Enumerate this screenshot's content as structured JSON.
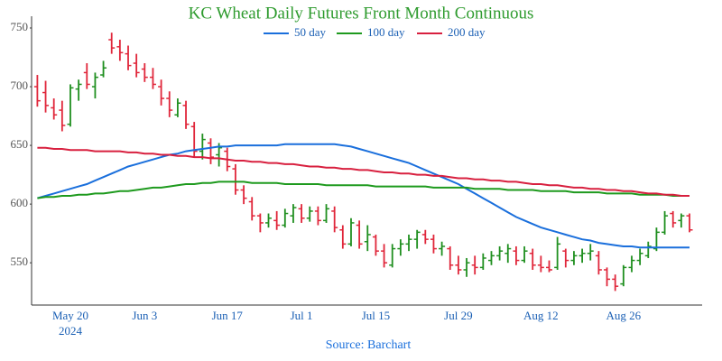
{
  "chart_data": {
    "type": "ohlc",
    "title": "KC Wheat Daily Futures Front Month Continuous",
    "source": "Source: Barchart",
    "x_sublabel": "2024",
    "categories": [
      null,
      null,
      null,
      null,
      "May 20",
      null,
      null,
      null,
      null,
      null,
      null,
      null,
      null,
      "Jun 3",
      null,
      null,
      null,
      null,
      null,
      null,
      null,
      null,
      null,
      "Jun 17",
      null,
      null,
      null,
      null,
      null,
      null,
      null,
      null,
      "Jul 1",
      null,
      null,
      null,
      null,
      null,
      null,
      null,
      null,
      "Jul 15",
      null,
      null,
      null,
      null,
      null,
      null,
      null,
      null,
      null,
      "Jul 29",
      null,
      null,
      null,
      null,
      null,
      null,
      null,
      null,
      null,
      "Aug 12",
      null,
      null,
      null,
      null,
      null,
      null,
      null,
      null,
      null,
      "Aug 26",
      null,
      null,
      null,
      null,
      null,
      null,
      null,
      null
    ],
    "open": [
      700,
      695,
      682,
      680,
      668,
      698,
      712,
      700,
      710,
      740,
      734,
      728,
      720,
      715,
      708,
      700,
      690,
      676,
      684,
      666,
      645,
      652,
      642,
      645,
      630,
      612,
      602,
      590,
      584,
      586,
      582,
      590,
      596,
      588,
      594,
      586,
      594,
      578,
      566,
      582,
      568,
      572,
      560,
      548,
      562,
      566,
      570,
      574,
      570,
      562,
      562,
      548,
      544,
      548,
      546,
      552,
      556,
      558,
      560,
      552,
      558,
      548,
      546,
      546,
      560,
      552,
      556,
      558,
      556,
      544,
      536,
      532,
      546,
      552,
      556,
      562,
      576,
      592,
      586,
      590
    ],
    "high": [
      710,
      705,
      690,
      688,
      702,
      706,
      720,
      712,
      722,
      746,
      740,
      735,
      728,
      720,
      716,
      706,
      696,
      690,
      688,
      670,
      660,
      656,
      652,
      648,
      634,
      616,
      606,
      592,
      592,
      594,
      596,
      600,
      600,
      598,
      598,
      600,
      598,
      582,
      588,
      586,
      582,
      574,
      566,
      566,
      570,
      574,
      578,
      578,
      574,
      568,
      564,
      556,
      554,
      556,
      558,
      560,
      564,
      566,
      564,
      564,
      562,
      556,
      552,
      572,
      562,
      560,
      562,
      566,
      560,
      546,
      540,
      548,
      556,
      562,
      568,
      580,
      594,
      594,
      592,
      592
    ],
    "low": [
      683,
      678,
      672,
      662,
      666,
      688,
      698,
      690,
      708,
      728,
      722,
      714,
      708,
      704,
      698,
      684,
      674,
      674,
      664,
      640,
      638,
      634,
      632,
      628,
      608,
      600,
      586,
      576,
      580,
      578,
      580,
      584,
      584,
      585,
      582,
      584,
      576,
      562,
      564,
      562,
      560,
      556,
      546,
      546,
      556,
      560,
      562,
      566,
      558,
      556,
      544,
      540,
      538,
      540,
      544,
      548,
      552,
      550,
      548,
      550,
      544,
      542,
      542,
      544,
      546,
      548,
      550,
      552,
      540,
      530,
      526,
      530,
      542,
      548,
      554,
      560,
      574,
      580,
      580,
      576
    ],
    "close": [
      688,
      684,
      676,
      667,
      699,
      702,
      702,
      708,
      716,
      733,
      729,
      718,
      712,
      708,
      702,
      690,
      680,
      686,
      668,
      645,
      655,
      640,
      648,
      632,
      612,
      605,
      590,
      584,
      588,
      582,
      592,
      597,
      588,
      594,
      586,
      596,
      580,
      566,
      584,
      566,
      574,
      560,
      550,
      562,
      566,
      570,
      576,
      570,
      562,
      564,
      548,
      544,
      550,
      546,
      554,
      556,
      560,
      562,
      552,
      560,
      548,
      546,
      544,
      566,
      552,
      556,
      558,
      560,
      544,
      536,
      530,
      546,
      552,
      558,
      564,
      576,
      590,
      584,
      590,
      578
    ],
    "up_color": "#1f8f1f",
    "down_color": "#e0263a",
    "series": [
      {
        "name": "50 day",
        "color": "#1a6fdc",
        "values": [
          605,
          607,
          609,
          611,
          613,
          615,
          617,
          620,
          623,
          626,
          629,
          632,
          634,
          636,
          638,
          640,
          642,
          643,
          645,
          646,
          647,
          648,
          649,
          649,
          650,
          650,
          650,
          650,
          650,
          650,
          651,
          651,
          651,
          651,
          651,
          651,
          651,
          650,
          649,
          647,
          645,
          643,
          641,
          639,
          637,
          635,
          632,
          629,
          626,
          623,
          620,
          617,
          613,
          609,
          605,
          601,
          597,
          593,
          589,
          586,
          583,
          580,
          578,
          576,
          574,
          572,
          570,
          569,
          567,
          566,
          565,
          564,
          564,
          563,
          563,
          563,
          563,
          563,
          563,
          563
        ]
      },
      {
        "name": "100 day",
        "color": "#1e9a1e",
        "values": [
          605,
          606,
          606,
          607,
          607,
          608,
          608,
          609,
          609,
          610,
          611,
          611,
          612,
          613,
          614,
          614,
          615,
          616,
          617,
          617,
          618,
          618,
          619,
          619,
          619,
          619,
          618,
          618,
          618,
          618,
          617,
          617,
          617,
          617,
          617,
          616,
          616,
          616,
          616,
          616,
          616,
          615,
          615,
          615,
          615,
          615,
          615,
          615,
          614,
          614,
          614,
          614,
          614,
          613,
          613,
          613,
          613,
          612,
          612,
          612,
          612,
          611,
          611,
          611,
          611,
          610,
          610,
          610,
          610,
          609,
          609,
          609,
          609,
          608,
          608,
          608,
          608,
          607,
          607,
          607
        ]
      },
      {
        "name": "200 day",
        "color": "#d8203f",
        "values": [
          648,
          648,
          647,
          647,
          646,
          646,
          646,
          645,
          645,
          645,
          645,
          644,
          644,
          643,
          643,
          642,
          642,
          641,
          641,
          640,
          640,
          639,
          639,
          638,
          637,
          637,
          636,
          636,
          635,
          635,
          634,
          634,
          633,
          632,
          632,
          631,
          631,
          630,
          630,
          629,
          629,
          628,
          627,
          627,
          626,
          626,
          625,
          625,
          624,
          624,
          623,
          622,
          622,
          621,
          621,
          620,
          620,
          619,
          619,
          618,
          617,
          617,
          616,
          616,
          615,
          614,
          614,
          613,
          613,
          612,
          612,
          611,
          611,
          610,
          609,
          609,
          608,
          608,
          607,
          607
        ]
      }
    ],
    "ylim": [
      514,
      760
    ],
    "yticks": [
      550,
      600,
      650,
      700,
      750
    ],
    "grid": false,
    "legend": "top"
  }
}
